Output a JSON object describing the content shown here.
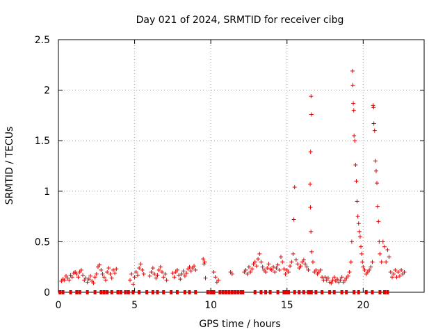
{
  "chart_data": {
    "type": "scatter",
    "title": "Day 021 of 2024, SRMTID for receiver cibg",
    "xlabel": "GPS time / hours",
    "ylabel": "SRMTID / TECUs",
    "xlim": [
      0,
      24
    ],
    "ylim": [
      0,
      2.5
    ],
    "xticks": [
      0,
      5,
      10,
      15,
      20
    ],
    "xtick_labels": [
      "0",
      "5",
      "10",
      "15",
      "20"
    ],
    "yticks": [
      0,
      0.5,
      1,
      1.5,
      2,
      2.5
    ],
    "ytick_labels": [
      "0",
      "0.5",
      "1",
      "1.5",
      "2",
      "2.5"
    ],
    "grid": true,
    "marker": "+",
    "color": "#e00000",
    "series": [
      {
        "name": "SRMTID",
        "points": [
          [
            0.2,
            0.11
          ],
          [
            0.3,
            0.13
          ],
          [
            0.4,
            0.12
          ],
          [
            0.5,
            0.16
          ],
          [
            0.6,
            0.14
          ],
          [
            0.7,
            0.12
          ],
          [
            0.8,
            0.17
          ],
          [
            0.9,
            0.15
          ],
          [
            1.0,
            0.19
          ],
          [
            1.1,
            0.2
          ],
          [
            1.2,
            0.18
          ],
          [
            1.3,
            0.15
          ],
          [
            1.4,
            0.2
          ],
          [
            1.5,
            0.22
          ],
          [
            1.6,
            0.17
          ],
          [
            1.7,
            0.12
          ],
          [
            1.8,
            0.14
          ],
          [
            1.9,
            0.1
          ],
          [
            2.0,
            0.13
          ],
          [
            2.1,
            0.16
          ],
          [
            2.2,
            0.11
          ],
          [
            2.3,
            0.09
          ],
          [
            2.4,
            0.15
          ],
          [
            2.5,
            0.18
          ],
          [
            2.6,
            0.25
          ],
          [
            2.7,
            0.27
          ],
          [
            2.8,
            0.22
          ],
          [
            2.9,
            0.18
          ],
          [
            3.0,
            0.15
          ],
          [
            3.1,
            0.12
          ],
          [
            3.2,
            0.2
          ],
          [
            3.3,
            0.24
          ],
          [
            3.4,
            0.18
          ],
          [
            3.5,
            0.14
          ],
          [
            3.6,
            0.22
          ],
          [
            3.7,
            0.19
          ],
          [
            3.8,
            0.23
          ],
          [
            4.7,
            0.12
          ],
          [
            4.8,
            0.18
          ],
          [
            4.9,
            0.08
          ],
          [
            5.0,
            0.15
          ],
          [
            5.1,
            0.2
          ],
          [
            5.2,
            0.17
          ],
          [
            5.3,
            0.24
          ],
          [
            5.4,
            0.28
          ],
          [
            5.5,
            0.22
          ],
          [
            5.6,
            0.18
          ],
          [
            6.0,
            0.16
          ],
          [
            6.1,
            0.2
          ],
          [
            6.2,
            0.24
          ],
          [
            6.3,
            0.18
          ],
          [
            6.4,
            0.14
          ],
          [
            6.5,
            0.17
          ],
          [
            6.6,
            0.22
          ],
          [
            6.7,
            0.25
          ],
          [
            6.8,
            0.2
          ],
          [
            6.9,
            0.15
          ],
          [
            7.0,
            0.18
          ],
          [
            7.1,
            0.12
          ],
          [
            7.5,
            0.19
          ],
          [
            7.6,
            0.15
          ],
          [
            7.7,
            0.2
          ],
          [
            7.8,
            0.22
          ],
          [
            7.9,
            0.17
          ],
          [
            8.0,
            0.13
          ],
          [
            8.1,
            0.18
          ],
          [
            8.2,
            0.21
          ],
          [
            8.3,
            0.16
          ],
          [
            8.4,
            0.19
          ],
          [
            8.5,
            0.23
          ],
          [
            8.6,
            0.25
          ],
          [
            8.7,
            0.21
          ],
          [
            8.8,
            0.24
          ],
          [
            8.9,
            0.26
          ],
          [
            9.0,
            0.22
          ],
          [
            9.5,
            0.33
          ],
          [
            9.55,
            0.28
          ],
          [
            9.6,
            0.3
          ],
          [
            9.65,
            0.14
          ],
          [
            10.2,
            0.2
          ],
          [
            10.3,
            0.15
          ],
          [
            10.4,
            0.1
          ],
          [
            10.5,
            0.12
          ],
          [
            11.3,
            0.2
          ],
          [
            11.4,
            0.18
          ],
          [
            12.2,
            0.2
          ],
          [
            12.3,
            0.22
          ],
          [
            12.4,
            0.18
          ],
          [
            12.5,
            0.25
          ],
          [
            12.6,
            0.2
          ],
          [
            12.7,
            0.23
          ],
          [
            12.8,
            0.28
          ],
          [
            12.9,
            0.3
          ],
          [
            13.0,
            0.26
          ],
          [
            13.1,
            0.33
          ],
          [
            13.2,
            0.38
          ],
          [
            13.3,
            0.3
          ],
          [
            13.4,
            0.25
          ],
          [
            13.5,
            0.22
          ],
          [
            13.6,
            0.2
          ],
          [
            13.7,
            0.24
          ],
          [
            13.8,
            0.28
          ],
          [
            13.9,
            0.23
          ],
          [
            14.0,
            0.22
          ],
          [
            14.1,
            0.25
          ],
          [
            14.2,
            0.2
          ],
          [
            14.3,
            0.24
          ],
          [
            14.4,
            0.27
          ],
          [
            14.5,
            0.22
          ],
          [
            14.6,
            0.35
          ],
          [
            14.7,
            0.3
          ],
          [
            14.8,
            0.23
          ],
          [
            14.9,
            0.18
          ],
          [
            15.0,
            0.22
          ],
          [
            15.1,
            0.2
          ],
          [
            15.2,
            0.26
          ],
          [
            15.3,
            0.3
          ],
          [
            15.4,
            0.38
          ],
          [
            15.45,
            0.72
          ],
          [
            15.5,
            1.04
          ],
          [
            15.6,
            0.32
          ],
          [
            15.7,
            0.28
          ],
          [
            15.8,
            0.24
          ],
          [
            15.9,
            0.26
          ],
          [
            16.0,
            0.3
          ],
          [
            16.1,
            0.32
          ],
          [
            16.2,
            0.28
          ],
          [
            16.3,
            0.25
          ],
          [
            16.4,
            0.22
          ],
          [
            16.55,
            1.39
          ],
          [
            16.58,
            1.94
          ],
          [
            16.6,
            1.76
          ],
          [
            16.52,
            1.07
          ],
          [
            16.54,
            0.84
          ],
          [
            16.57,
            0.6
          ],
          [
            16.62,
            0.4
          ],
          [
            16.7,
            0.3
          ],
          [
            16.8,
            0.2
          ],
          [
            16.9,
            0.22
          ],
          [
            17.0,
            0.18
          ],
          [
            17.1,
            0.2
          ],
          [
            17.2,
            0.22
          ],
          [
            17.3,
            0.15
          ],
          [
            17.4,
            0.12
          ],
          [
            17.5,
            0.15
          ],
          [
            17.6,
            0.12
          ],
          [
            17.7,
            0.14
          ],
          [
            17.8,
            0.1
          ],
          [
            17.9,
            0.09
          ],
          [
            18.0,
            0.12
          ],
          [
            18.1,
            0.15
          ],
          [
            18.2,
            0.11
          ],
          [
            18.3,
            0.13
          ],
          [
            18.4,
            0.1
          ],
          [
            18.5,
            0.12
          ],
          [
            18.6,
            0.15
          ],
          [
            18.7,
            0.1
          ],
          [
            18.8,
            0.12
          ],
          [
            18.9,
            0.14
          ],
          [
            19.0,
            0.16
          ],
          [
            19.1,
            0.2
          ],
          [
            19.2,
            0.3
          ],
          [
            19.25,
            0.5
          ],
          [
            19.3,
            2.19
          ],
          [
            19.32,
            2.05
          ],
          [
            19.35,
            1.87
          ],
          [
            19.38,
            1.8
          ],
          [
            19.4,
            1.55
          ],
          [
            19.45,
            1.5
          ],
          [
            19.5,
            1.26
          ],
          [
            19.55,
            1.1
          ],
          [
            19.6,
            0.9
          ],
          [
            19.65,
            0.75
          ],
          [
            19.7,
            0.68
          ],
          [
            19.75,
            0.6
          ],
          [
            19.8,
            0.55
          ],
          [
            19.85,
            0.45
          ],
          [
            19.9,
            0.38
          ],
          [
            19.95,
            0.3
          ],
          [
            20.0,
            0.25
          ],
          [
            20.1,
            0.22
          ],
          [
            20.2,
            0.18
          ],
          [
            20.3,
            0.2
          ],
          [
            20.4,
            0.22
          ],
          [
            20.5,
            0.25
          ],
          [
            20.6,
            0.3
          ],
          [
            20.65,
            1.85
          ],
          [
            20.68,
            1.83
          ],
          [
            20.7,
            1.67
          ],
          [
            20.75,
            1.6
          ],
          [
            20.8,
            1.3
          ],
          [
            20.85,
            1.2
          ],
          [
            20.9,
            1.08
          ],
          [
            20.95,
            0.85
          ],
          [
            21.0,
            0.7
          ],
          [
            21.05,
            0.5
          ],
          [
            21.1,
            0.38
          ],
          [
            21.2,
            0.3
          ],
          [
            21.3,
            0.5
          ],
          [
            21.4,
            0.45
          ],
          [
            21.5,
            0.3
          ],
          [
            21.6,
            0.42
          ],
          [
            21.7,
            0.35
          ],
          [
            21.8,
            0.2
          ],
          [
            21.9,
            0.15
          ],
          [
            22.0,
            0.18
          ],
          [
            22.1,
            0.22
          ],
          [
            22.2,
            0.15
          ],
          [
            22.3,
            0.2
          ],
          [
            22.4,
            0.16
          ],
          [
            22.5,
            0.22
          ],
          [
            22.6,
            0.18
          ],
          [
            22.7,
            0.2
          ]
        ]
      },
      {
        "name": "zero-values",
        "points": [
          [
            0.1,
            0
          ],
          [
            0.3,
            0
          ],
          [
            0.8,
            0
          ],
          [
            1.2,
            0
          ],
          [
            1.4,
            0
          ],
          [
            1.9,
            0
          ],
          [
            2.4,
            0
          ],
          [
            2.8,
            0
          ],
          [
            3.0,
            0
          ],
          [
            3.2,
            0
          ],
          [
            3.5,
            0
          ],
          [
            3.9,
            0
          ],
          [
            4.1,
            0
          ],
          [
            4.4,
            0
          ],
          [
            4.6,
            0
          ],
          [
            4.9,
            0
          ],
          [
            5.3,
            0
          ],
          [
            5.8,
            0
          ],
          [
            6.2,
            0
          ],
          [
            6.5,
            0
          ],
          [
            6.9,
            0
          ],
          [
            7.4,
            0
          ],
          [
            7.8,
            0
          ],
          [
            8.3,
            0
          ],
          [
            8.6,
            0
          ],
          [
            9.0,
            0
          ],
          [
            9.8,
            0
          ],
          [
            10.0,
            0
          ],
          [
            10.1,
            0
          ],
          [
            10.2,
            0
          ],
          [
            10.6,
            0
          ],
          [
            10.8,
            0
          ],
          [
            11.0,
            0
          ],
          [
            11.2,
            0
          ],
          [
            11.4,
            0
          ],
          [
            11.6,
            0
          ],
          [
            11.8,
            0
          ],
          [
            12.0,
            0
          ],
          [
            12.1,
            0
          ],
          [
            12.9,
            0
          ],
          [
            13.3,
            0
          ],
          [
            13.6,
            0
          ],
          [
            13.9,
            0
          ],
          [
            14.4,
            0
          ],
          [
            14.8,
            0
          ],
          [
            14.9,
            0
          ],
          [
            15.0,
            0
          ],
          [
            15.1,
            0
          ],
          [
            15.5,
            0
          ],
          [
            15.8,
            0
          ],
          [
            16.1,
            0
          ],
          [
            16.4,
            0
          ],
          [
            16.5,
            0
          ],
          [
            16.6,
            0
          ],
          [
            16.9,
            0
          ],
          [
            17.3,
            0
          ],
          [
            17.8,
            0
          ],
          [
            18.1,
            0
          ],
          [
            18.6,
            0
          ],
          [
            18.9,
            0
          ],
          [
            19.4,
            0
          ],
          [
            19.7,
            0
          ],
          [
            20.2,
            0
          ],
          [
            20.6,
            0
          ],
          [
            21.1,
            0
          ],
          [
            21.4,
            0
          ],
          [
            21.6,
            0
          ]
        ]
      }
    ]
  }
}
